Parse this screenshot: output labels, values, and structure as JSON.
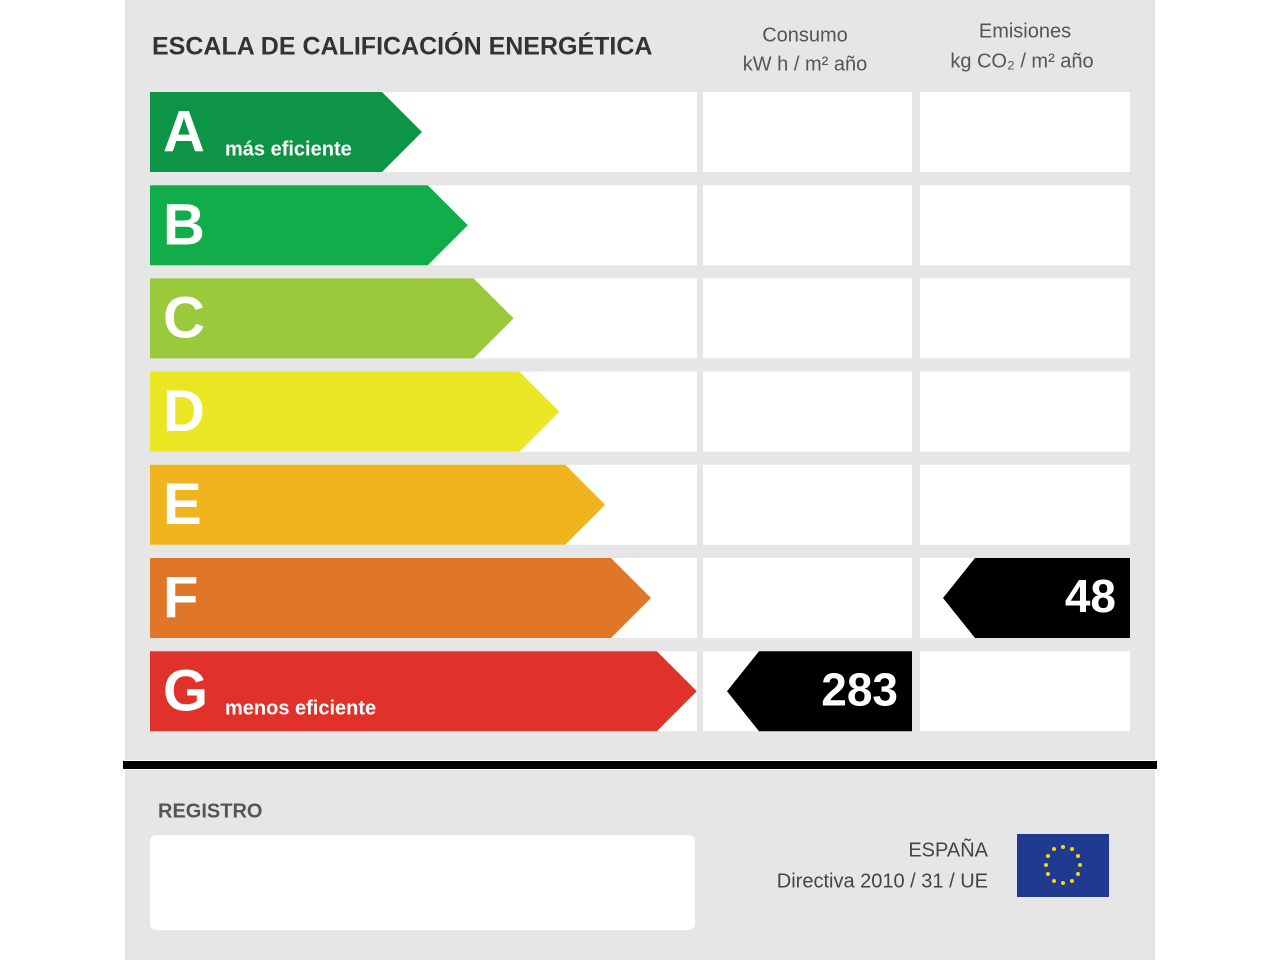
{
  "header": {
    "title": "ESCALA DE CALIFICACIÓN ENERGÉTICA",
    "consumption": {
      "label": "Consumo",
      "unit": "kW h / m² año"
    },
    "emissions": {
      "label": "Emisiones",
      "unit": "kg CO₂ / m² año"
    }
  },
  "classes": [
    {
      "letter": "A",
      "note": "más eficiente",
      "color": "#0e9447"
    },
    {
      "letter": "B",
      "color": "#12ad4b"
    },
    {
      "letter": "C",
      "color": "#9ac93b"
    },
    {
      "letter": "D",
      "color": "#ebe623"
    },
    {
      "letter": "E",
      "color": "#f0b41f"
    },
    {
      "letter": "F",
      "color": "#e07628"
    },
    {
      "letter": "G",
      "note": "menos eficiente",
      "color": "#e0312a"
    }
  ],
  "ratings": {
    "consumption": {
      "class": "G",
      "value": 283
    },
    "emissions": {
      "class": "F",
      "value": 48
    }
  },
  "footer": {
    "registry": "REGISTRO",
    "country": "ESPAÑA",
    "directive": "Directiva 2010 / 31 / UE"
  }
}
